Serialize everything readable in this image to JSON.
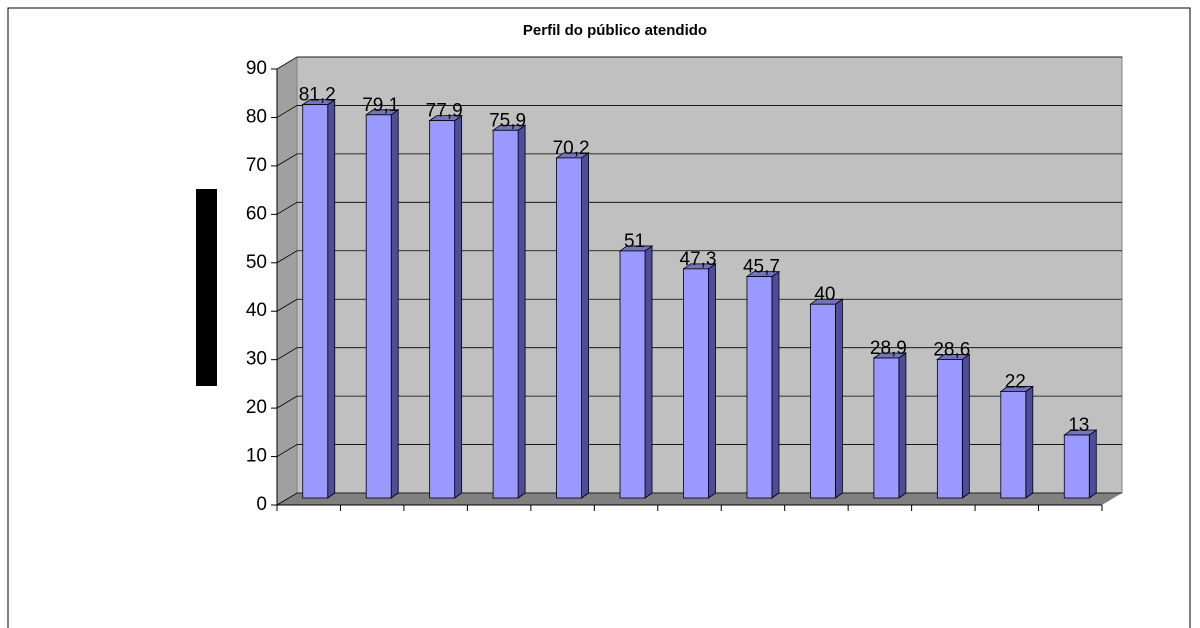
{
  "chart_data": {
    "type": "bar",
    "title": "Perfil do público atendido",
    "categories": [
      null,
      null,
      null,
      null,
      null,
      null,
      null,
      null,
      null,
      null,
      null,
      null,
      null
    ],
    "values": [
      81.2,
      79.1,
      77.9,
      75.9,
      70.2,
      51,
      47.3,
      45.7,
      40,
      28.9,
      28.6,
      22,
      13
    ],
    "value_labels": [
      "81,2",
      "79,1",
      "77,9",
      "75,9",
      "70,2",
      "51",
      "47,3",
      "45,7",
      "40",
      "28,9",
      "28,6",
      "22",
      "13"
    ],
    "color": "#9999ff",
    "ylim": [
      0,
      90
    ],
    "yticks": [
      0,
      10,
      20,
      30,
      40,
      50,
      60,
      70,
      80,
      90
    ],
    "grid": true
  }
}
